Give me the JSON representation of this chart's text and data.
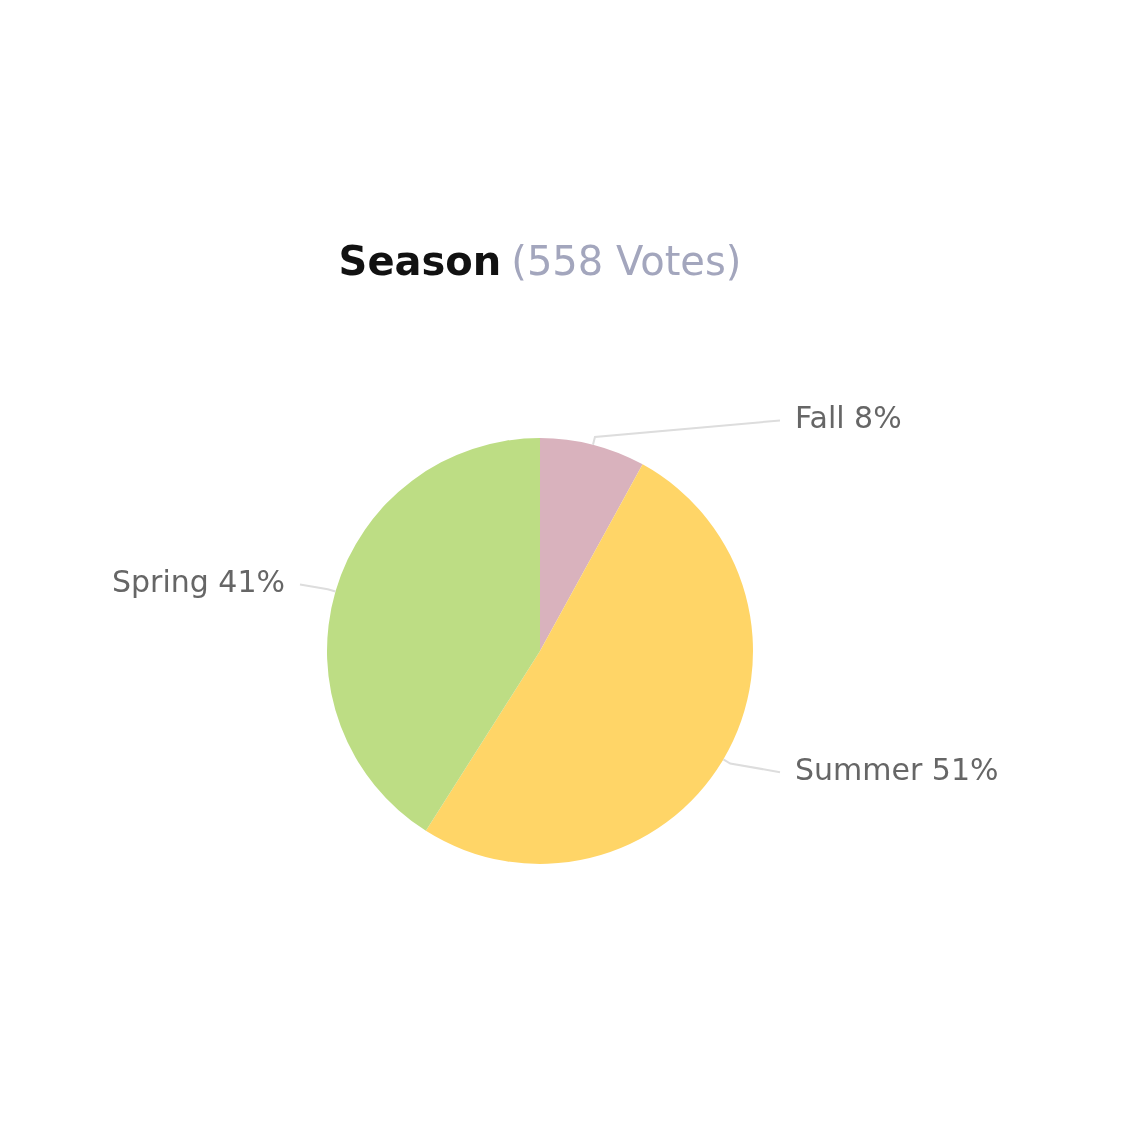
{
  "chart_data": {
    "type": "pie",
    "title": "Season",
    "subtitle": "(558 Votes)",
    "categories": [
      "Fall",
      "Summer",
      "Spring"
    ],
    "values": [
      8,
      51,
      41
    ],
    "colors": [
      "#d9b2bd",
      "#ffd567",
      "#bddd84"
    ],
    "value_labels": [
      "8%",
      "51%",
      "41%"
    ],
    "legend": false
  }
}
